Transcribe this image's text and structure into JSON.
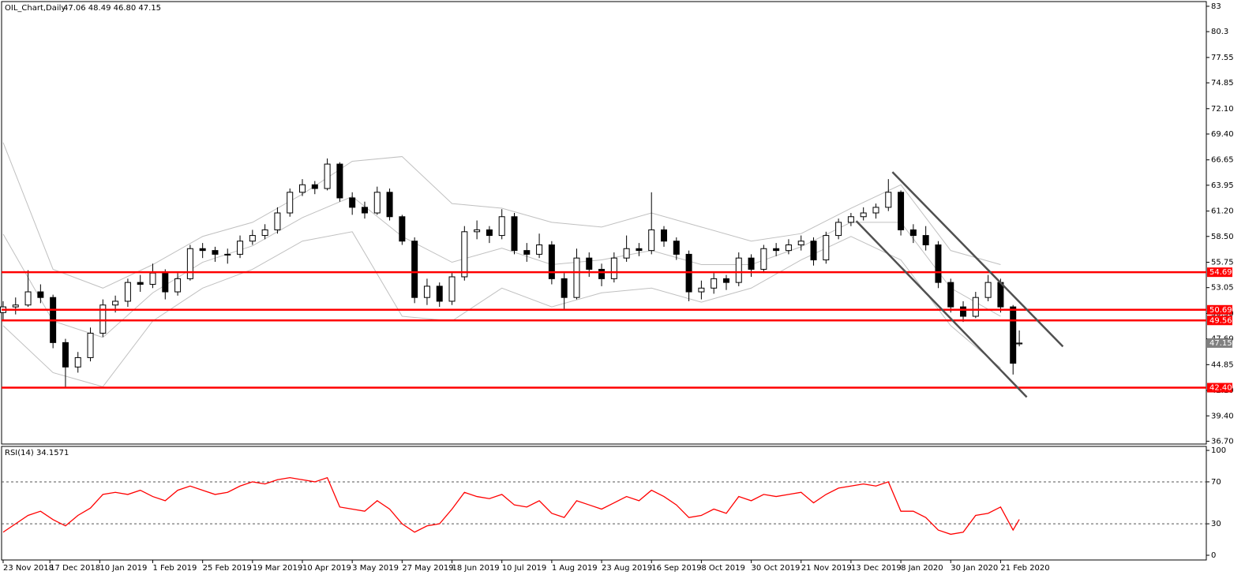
{
  "chart_data": [
    {
      "type": "candlestick",
      "title": "OIL_Chart,Daily",
      "subtitle": "47.06 48.49 46.80 47.15",
      "x": [
        0,
        4,
        8,
        12,
        16,
        20,
        24,
        28,
        32,
        36,
        40,
        44,
        48,
        52,
        56,
        60,
        64,
        68,
        72,
        76,
        80,
        84,
        88,
        92,
        96,
        100,
        104,
        108,
        112,
        116,
        120,
        124,
        128,
        132,
        136,
        140,
        144,
        148,
        152,
        156,
        160,
        164,
        168,
        172,
        176,
        180,
        184,
        188,
        192,
        196,
        200,
        204,
        208,
        212,
        216,
        220,
        224,
        228,
        232,
        236,
        240,
        244,
        248,
        252,
        256,
        260,
        264,
        268,
        272,
        276,
        280,
        284,
        288,
        292,
        296,
        300,
        304,
        308,
        312,
        316,
        320,
        324,
        326
      ],
      "ohlc": [
        [
          50.4,
          51.6,
          49.6,
          51.0
        ],
        [
          51.0,
          52.0,
          50.2,
          51.2
        ],
        [
          51.2,
          54.9,
          51.0,
          52.6
        ],
        [
          52.6,
          53.4,
          51.4,
          52.0
        ],
        [
          52.0,
          52.3,
          46.6,
          47.2
        ],
        [
          47.2,
          47.6,
          42.4,
          44.6
        ],
        [
          44.6,
          46.2,
          44.0,
          45.6
        ],
        [
          45.6,
          48.8,
          45.2,
          48.2
        ],
        [
          48.2,
          51.8,
          47.8,
          51.2
        ],
        [
          51.2,
          52.2,
          50.4,
          51.6
        ],
        [
          51.6,
          54.0,
          51.0,
          53.6
        ],
        [
          53.6,
          54.4,
          52.6,
          53.4
        ],
        [
          53.4,
          55.6,
          53.0,
          54.6
        ],
        [
          54.6,
          55.0,
          51.8,
          52.6
        ],
        [
          52.6,
          54.6,
          52.2,
          54.0
        ],
        [
          54.0,
          57.6,
          53.8,
          57.2
        ],
        [
          57.2,
          57.8,
          56.2,
          57.0
        ],
        [
          57.0,
          57.4,
          55.8,
          56.6
        ],
        [
          56.6,
          57.2,
          55.6,
          56.6
        ],
        [
          56.6,
          58.6,
          56.2,
          58.0
        ],
        [
          58.0,
          59.2,
          57.6,
          58.6
        ],
        [
          58.6,
          59.8,
          58.2,
          59.2
        ],
        [
          59.2,
          61.6,
          58.8,
          61.0
        ],
        [
          61.0,
          63.6,
          60.6,
          63.2
        ],
        [
          63.2,
          64.6,
          62.8,
          64.0
        ],
        [
          64.0,
          64.4,
          63.0,
          63.6
        ],
        [
          63.6,
          66.8,
          63.4,
          66.2
        ],
        [
          66.2,
          66.4,
          62.2,
          62.6
        ],
        [
          62.6,
          63.2,
          60.8,
          61.6
        ],
        [
          61.6,
          62.2,
          60.4,
          61.0
        ],
        [
          61.0,
          63.8,
          60.8,
          63.2
        ],
        [
          63.2,
          63.6,
          60.2,
          60.6
        ],
        [
          60.6,
          60.8,
          57.6,
          58.0
        ],
        [
          58.0,
          58.4,
          51.4,
          52.0
        ],
        [
          52.0,
          54.0,
          51.2,
          53.2
        ],
        [
          53.2,
          53.6,
          51.0,
          51.6
        ],
        [
          51.6,
          54.6,
          51.2,
          54.2
        ],
        [
          54.2,
          59.6,
          53.8,
          59.0
        ],
        [
          59.0,
          60.2,
          58.2,
          59.2
        ],
        [
          59.2,
          59.6,
          57.8,
          58.6
        ],
        [
          58.6,
          61.4,
          58.2,
          60.6
        ],
        [
          60.6,
          61.0,
          56.6,
          57.0
        ],
        [
          57.0,
          57.8,
          55.8,
          56.6
        ],
        [
          56.6,
          58.8,
          56.2,
          57.6
        ],
        [
          57.6,
          58.0,
          53.4,
          54.0
        ],
        [
          54.0,
          54.6,
          50.8,
          52.0
        ],
        [
          52.0,
          57.2,
          51.8,
          56.2
        ],
        [
          56.2,
          56.8,
          54.2,
          55.0
        ],
        [
          55.0,
          55.6,
          53.2,
          54.0
        ],
        [
          54.0,
          56.8,
          53.6,
          56.2
        ],
        [
          56.2,
          58.6,
          55.8,
          57.2
        ],
        [
          57.2,
          57.8,
          56.4,
          57.0
        ],
        [
          57.0,
          63.2,
          56.6,
          59.2
        ],
        [
          59.2,
          59.6,
          57.4,
          58.0
        ],
        [
          58.0,
          58.4,
          56.0,
          56.6
        ],
        [
          56.6,
          57.0,
          51.6,
          52.6
        ],
        [
          52.6,
          53.8,
          51.8,
          53.0
        ],
        [
          53.0,
          54.6,
          52.4,
          54.0
        ],
        [
          54.0,
          54.4,
          52.8,
          53.6
        ],
        [
          53.6,
          56.8,
          53.2,
          56.2
        ],
        [
          56.2,
          56.6,
          54.2,
          55.0
        ],
        [
          55.0,
          57.6,
          54.6,
          57.2
        ],
        [
          57.2,
          57.8,
          56.4,
          57.0
        ],
        [
          57.0,
          58.2,
          56.6,
          57.6
        ],
        [
          57.6,
          58.6,
          57.0,
          58.0
        ],
        [
          58.0,
          58.4,
          55.4,
          56.0
        ],
        [
          56.0,
          59.0,
          55.6,
          58.6
        ],
        [
          58.6,
          60.4,
          58.2,
          60.0
        ],
        [
          60.0,
          61.0,
          59.6,
          60.6
        ],
        [
          60.6,
          61.6,
          60.2,
          61.0
        ],
        [
          61.0,
          62.0,
          60.4,
          61.6
        ],
        [
          61.6,
          64.6,
          61.2,
          63.2
        ],
        [
          63.2,
          63.4,
          58.6,
          59.2
        ],
        [
          59.2,
          59.8,
          57.8,
          58.6
        ],
        [
          58.6,
          59.6,
          57.0,
          57.6
        ],
        [
          57.6,
          58.0,
          53.0,
          53.6
        ],
        [
          53.6,
          54.0,
          50.4,
          51.0
        ],
        [
          51.0,
          51.6,
          49.4,
          50.0
        ],
        [
          50.0,
          52.6,
          49.8,
          52.0
        ],
        [
          52.0,
          54.4,
          51.6,
          53.6
        ],
        [
          53.6,
          54.0,
          50.4,
          51.0
        ],
        [
          51.0,
          51.2,
          43.8,
          45.0
        ],
        [
          47.06,
          48.49,
          46.8,
          47.15
        ]
      ],
      "up_color": "#ffffff",
      "down_color": "#000000",
      "wick_color": "#000000",
      "bands": {
        "color": "#c0c0c0",
        "x": [
          0,
          16,
          32,
          48,
          64,
          80,
          96,
          112,
          128,
          144,
          160,
          176,
          192,
          208,
          224,
          240,
          256,
          272,
          288,
          304,
          320
        ],
        "upper": [
          68.5,
          55,
          53,
          55.5,
          58.5,
          60,
          63,
          66.5,
          67,
          62,
          61.5,
          60,
          59.5,
          61,
          59.5,
          58,
          58.8,
          61.5,
          64,
          57,
          55.5
        ],
        "middle": [
          58.75,
          49.5,
          47.75,
          52.5,
          55.75,
          57.5,
          60.5,
          62.75,
          58.5,
          55.75,
          57.25,
          55.5,
          56,
          57,
          55.5,
          55.5,
          57.4,
          60,
          60,
          53,
          50
        ],
        "lower": [
          49,
          44,
          42.5,
          49.5,
          53,
          55,
          58,
          59,
          50,
          49.5,
          53,
          51,
          52.5,
          53,
          51.5,
          53,
          56,
          58.5,
          56,
          49,
          44.5
        ]
      },
      "levels": {
        "color": "#ff0000",
        "values": [
          54.69,
          50.69,
          49.56,
          {
            "value": 42.4,
            "label": "42.40"
          }
        ]
      },
      "trendlines": {
        "color": "#505050",
        "lines": [
          {
            "x": [
              285.3,
              340
            ],
            "y": [
              65.35,
              46.78
            ]
          },
          {
            "x": [
              273.7,
              328.4
            ],
            "y": [
              60.14,
              41.4
            ]
          }
        ]
      },
      "xlim": [
        -0.5,
        386
      ],
      "ylim": [
        36.4,
        83.5
      ],
      "yticks": [
        83,
        80.3,
        77.55,
        74.85,
        {
          "value": 72.1,
          "label": "72.10"
        },
        {
          "value": 69.4,
          "label": "69.40"
        },
        66.65,
        63.95,
        {
          "value": 61.2,
          "label": "61.20"
        },
        {
          "value": 58.5,
          "label": "58.50"
        },
        55.75,
        53.05,
        {
          "value": 50.3,
          "label": "50.30"
        },
        {
          "value": 47.6,
          "label": "47.60"
        },
        44.85,
        {
          "value": 42.1,
          "label": "42.10"
        },
        {
          "value": 39.4,
          "label": "39.40"
        },
        {
          "value": 36.7,
          "label": "36.70"
        }
      ]
    },
    {
      "type": "line",
      "title": "RSI(14) 34.1571",
      "color": "#ff0000",
      "x": [
        0,
        4,
        8,
        12,
        16,
        20,
        24,
        28,
        32,
        36,
        40,
        44,
        48,
        52,
        56,
        60,
        64,
        68,
        72,
        76,
        80,
        84,
        88,
        92,
        96,
        100,
        104,
        108,
        112,
        116,
        120,
        124,
        128,
        132,
        136,
        140,
        144,
        148,
        152,
        156,
        160,
        164,
        168,
        172,
        176,
        180,
        184,
        188,
        192,
        196,
        200,
        204,
        208,
        212,
        216,
        220,
        224,
        228,
        232,
        236,
        240,
        244,
        248,
        252,
        256,
        260,
        264,
        268,
        272,
        276,
        280,
        284,
        288,
        292,
        296,
        300,
        304,
        308,
        312,
        316,
        320,
        324,
        326
      ],
      "values": [
        22,
        30,
        38,
        42,
        34,
        28,
        38,
        45,
        58,
        60,
        58,
        62,
        56,
        52,
        62,
        66,
        62,
        58,
        60,
        66,
        70,
        68,
        72,
        74,
        72,
        70,
        74,
        46,
        44,
        42,
        52,
        44,
        30,
        22,
        28,
        30,
        44,
        60,
        56,
        54,
        58,
        48,
        46,
        52,
        40,
        36,
        52,
        48,
        44,
        50,
        56,
        52,
        62,
        56,
        48,
        36,
        38,
        44,
        40,
        56,
        52,
        58,
        56,
        58,
        60,
        50,
        58,
        64,
        66,
        68,
        66,
        70,
        42,
        42,
        36,
        24,
        20,
        22,
        38,
        40,
        46,
        24,
        34.16
      ],
      "levels": [
        70,
        30
      ],
      "xlim": [
        -0.5,
        386
      ],
      "ylim": [
        -4.5,
        103.8
      ],
      "yticks": [
        100,
        70,
        30,
        0
      ],
      "xticks": [
        {
          "value": 0,
          "label": "23 Nov 2018"
        },
        {
          "value": 15,
          "label": "17 Dec 2018"
        },
        {
          "value": 31,
          "label": "10 Jan 2019"
        },
        {
          "value": 48,
          "label": "1 Feb 2019"
        },
        {
          "value": 64,
          "label": "25 Feb 2019"
        },
        {
          "value": 80,
          "label": "19 Mar 2019"
        },
        {
          "value": 96,
          "label": "10 Apr 2019"
        },
        {
          "value": 112,
          "label": "3 May 2019"
        },
        {
          "value": 128,
          "label": "27 May 2019"
        },
        {
          "value": 144,
          "label": "18 Jun 2019"
        },
        {
          "value": 160,
          "label": "10 Jul 2019"
        },
        {
          "value": 176,
          "label": "1 Aug 2019"
        },
        {
          "value": 192,
          "label": "23 Aug 2019"
        },
        {
          "value": 208,
          "label": "16 Sep 2019"
        },
        {
          "value": 224,
          "label": "8 Oct 2019"
        },
        {
          "value": 240,
          "label": "30 Oct 2019"
        },
        {
          "value": 256,
          "label": "21 Nov 2019"
        },
        {
          "value": 272,
          "label": "13 Dec 2019"
        },
        {
          "value": 288,
          "label": "8 Jan 2020"
        },
        {
          "value": 304,
          "label": "30 Jan 2020"
        },
        {
          "value": 320,
          "label": "21 Feb 2020"
        }
      ]
    }
  ]
}
